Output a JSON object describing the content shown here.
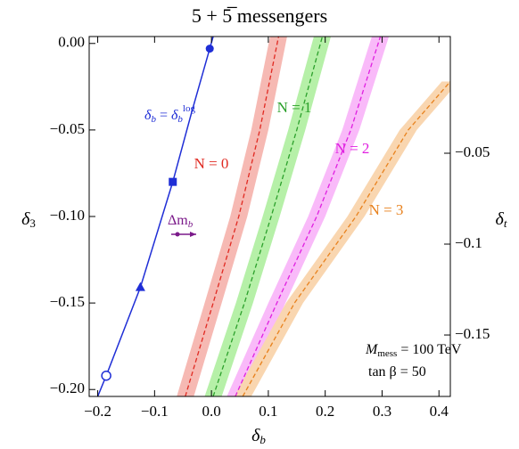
{
  "chart_data": {
    "type": "line",
    "title": "5 + 5̅ messengers",
    "x_label": [
      "δ",
      "b"
    ],
    "y_label": [
      "δ",
      "3"
    ],
    "y2_label": [
      "δ",
      "t"
    ],
    "xlim": [
      -0.215,
      0.42
    ],
    "ylim": [
      -0.204,
      0.004
    ],
    "y2lim": [
      -0.1838,
      0.0142
    ],
    "xticks": [
      {
        "value": -0.2,
        "label": "−0.2"
      },
      {
        "value": -0.1,
        "label": "−0.1"
      },
      {
        "value": 0,
        "label": "0.0"
      },
      {
        "value": 0.1,
        "label": "0.1"
      },
      {
        "value": 0.2,
        "label": "0.2"
      },
      {
        "value": 0.3,
        "label": "0.3"
      },
      {
        "value": 0.4,
        "label": "0.4"
      }
    ],
    "yticks": [
      {
        "value": 0,
        "label": "0.00"
      },
      {
        "value": -0.05,
        "label": "−0.05"
      },
      {
        "value": -0.1,
        "label": "−0.10"
      },
      {
        "value": -0.15,
        "label": "−0.15"
      },
      {
        "value": -0.2,
        "label": "−0.20"
      }
    ],
    "y2ticks": [
      {
        "value": -0.05,
        "label": "−0.05"
      },
      {
        "value": -0.1,
        "label": "−0.1"
      },
      {
        "value": -0.15,
        "label": "−0.15"
      }
    ],
    "series": [
      {
        "name": "N = 0",
        "color": "#e02a22",
        "band_color": "#f6b9b3",
        "band_halfwidth": 0.015,
        "x": [
          -0.046,
          0.003,
          0.048,
          0.085,
          0.118
        ],
        "values": [
          -0.204,
          -0.15,
          -0.1,
          -0.05,
          0.004
        ]
      },
      {
        "name": "N = 1",
        "color": "#2ca02c",
        "band_color": "#b6f0a8",
        "band_halfwidth": 0.015,
        "x": [
          0.003,
          0.058,
          0.105,
          0.15,
          0.195
        ],
        "values": [
          -0.204,
          -0.15,
          -0.1,
          -0.05,
          0.004
        ]
      },
      {
        "name": "N = 2",
        "color": "#e020e0",
        "band_color": "#f9baf9",
        "band_halfwidth": 0.015,
        "x": [
          0.042,
          0.115,
          0.185,
          0.245,
          0.297
        ],
        "values": [
          -0.204,
          -0.15,
          -0.1,
          -0.05,
          0.004
        ]
      },
      {
        "name": "N = 3",
        "color": "#e8821e",
        "band_color": "#f9d6b0",
        "band_halfwidth": 0.015,
        "x": [
          0.055,
          0.146,
          0.254,
          0.346,
          0.42
        ],
        "values": [
          -0.204,
          -0.15,
          -0.1,
          -0.05,
          -0.022
        ]
      }
    ],
    "reference": {
      "label": [
        "δ",
        "b",
        " = ",
        "δ",
        "b",
        "log"
      ],
      "color": "#1f2ed6",
      "x": [
        -0.2,
        -0.185,
        -0.125,
        -0.068,
        -0.035,
        -0.003,
        0.003
      ],
      "values": [
        -0.204,
        -0.192,
        -0.141,
        -0.08,
        -0.04,
        -0.003,
        0.004
      ],
      "markers": [
        {
          "shape": "open-circle",
          "x": -0.185,
          "y": -0.192
        },
        {
          "shape": "triangle",
          "x": -0.125,
          "y": -0.141
        },
        {
          "shape": "square",
          "x": -0.068,
          "y": -0.08
        },
        {
          "shape": "circle",
          "x": -0.003,
          "y": -0.003
        }
      ]
    },
    "arrow_label": [
      "Δm",
      "b"
    ],
    "arrow_color": "#7b1a8a",
    "note": [
      [
        "M",
        "mess",
        " = 100 TeV"
      ],
      [
        "tan β = 50"
      ]
    ]
  }
}
